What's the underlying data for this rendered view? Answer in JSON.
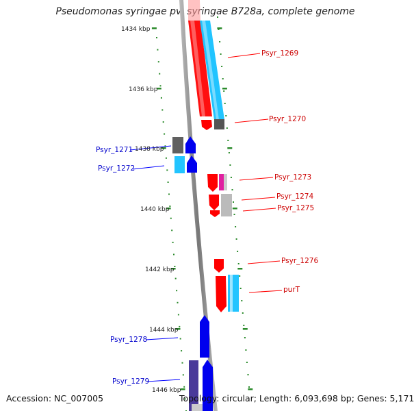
{
  "title": "Pseudomonas syringae pv. syringae B728a, complete genome",
  "footer": {
    "accession": "Accession: NC_007005",
    "summary": "Topology: circular; Length: 6,093,698 bp; Genes: 5,171"
  },
  "colors": {
    "forward_gene": "#ff0000",
    "reverse_gene": "#0000ff",
    "forward_cds": "#22ccff",
    "rrna_other": "#d02090",
    "tick": "#2a8a2a",
    "backbone": "#888888",
    "pseudo": "#555555"
  },
  "ticks": [
    {
      "label": "1434 kbp"
    },
    {
      "label": "1436 kbp"
    },
    {
      "label": "1438 kbp"
    },
    {
      "label": "1440 kbp"
    },
    {
      "label": "1442 kbp"
    },
    {
      "label": "1444 kbp"
    },
    {
      "label": "1446 kbp"
    }
  ],
  "genes": [
    {
      "label": "Psyr_1269",
      "strand": "forward"
    },
    {
      "label": "Psyr_1270",
      "strand": "forward"
    },
    {
      "label": "Psyr_1271",
      "strand": "reverse"
    },
    {
      "label": "Psyr_1272",
      "strand": "reverse"
    },
    {
      "label": "Psyr_1273",
      "strand": "forward"
    },
    {
      "label": "Psyr_1274",
      "strand": "forward"
    },
    {
      "label": "Psyr_1275",
      "strand": "forward"
    },
    {
      "label": "Psyr_1276",
      "strand": "forward"
    },
    {
      "label": "purT",
      "strand": "forward"
    },
    {
      "label": "Psyr_1278",
      "strand": "reverse"
    },
    {
      "label": "Psyr_1279",
      "strand": "reverse"
    }
  ]
}
